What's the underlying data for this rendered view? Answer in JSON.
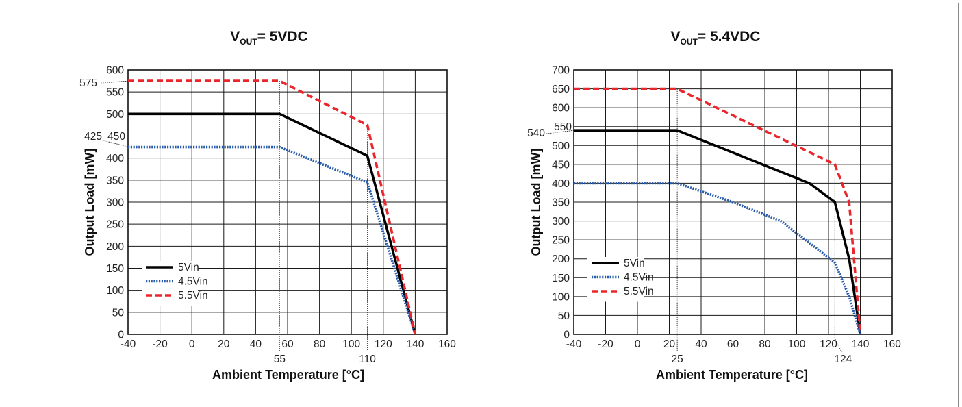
{
  "chart_data": [
    {
      "type": "line",
      "title_main": "V",
      "title_sub": "OUT",
      "title_rest": "= 5VDC",
      "xlabel": "Ambient Temperature [°C]",
      "ylabel": "Output Load [mW]",
      "xlim": [
        -40,
        160
      ],
      "ylim": [
        0,
        600
      ],
      "xticks": [
        "-40",
        "-20",
        "0",
        "20",
        "40",
        "60",
        "80",
        "100",
        "120",
        "140",
        "160"
      ],
      "yticks": [
        "0",
        "50",
        "100",
        "150",
        "200",
        "250",
        "300",
        "350",
        "400",
        "450",
        "500",
        "550",
        "600"
      ],
      "grid": true,
      "legend_position": "bottom-left",
      "series": [
        {
          "name": "5Vin",
          "color": "#000000",
          "style": "solid",
          "x": [
            -40,
            55,
            110,
            140
          ],
          "y": [
            500,
            500,
            405,
            0
          ]
        },
        {
          "name": "4.5Vin",
          "color": "#2a5caa",
          "style": "dotted",
          "x": [
            -40,
            55,
            110,
            140
          ],
          "y": [
            425,
            425,
            345,
            0
          ]
        },
        {
          "name": "5.5Vin",
          "color": "#e8262c",
          "style": "dashed",
          "x": [
            -40,
            55,
            110,
            140
          ],
          "y": [
            575,
            575,
            475,
            0
          ]
        }
      ],
      "annotations": {
        "y_markers": [
          {
            "label": "575",
            "value": 575
          },
          {
            "label": "425",
            "value": 425
          }
        ],
        "x_markers": [
          {
            "label": "55",
            "value": 55
          },
          {
            "label": "110",
            "value": 110
          }
        ]
      }
    },
    {
      "type": "line",
      "title_main": "V",
      "title_sub": "OUT",
      "title_rest": "= 5.4VDC",
      "xlabel": "Ambient Temperature [°C]",
      "ylabel": "Output Load [mW]",
      "xlim": [
        -40,
        160
      ],
      "ylim": [
        0,
        700
      ],
      "xticks": [
        "-40",
        "-20",
        "0",
        "20",
        "40",
        "60",
        "80",
        "100",
        "120",
        "140",
        "160"
      ],
      "yticks": [
        "0",
        "50",
        "100",
        "150",
        "200",
        "250",
        "300",
        "350",
        "400",
        "450",
        "500",
        "550",
        "600",
        "650",
        "700"
      ],
      "grid": true,
      "legend_position": "bottom-left",
      "series": [
        {
          "name": "5Vin",
          "color": "#000000",
          "style": "solid",
          "x": [
            -40,
            25,
            108,
            124,
            133,
            140
          ],
          "y": [
            540,
            540,
            400,
            350,
            200,
            0
          ]
        },
        {
          "name": "4.5Vin",
          "color": "#2a5caa",
          "style": "dotted",
          "x": [
            -40,
            25,
            60,
            90,
            124,
            133,
            140
          ],
          "y": [
            400,
            400,
            350,
            300,
            190,
            100,
            0
          ]
        },
        {
          "name": "5.5Vin",
          "color": "#e8262c",
          "style": "dashed",
          "x": [
            -40,
            25,
            124,
            133,
            140
          ],
          "y": [
            650,
            650,
            450,
            350,
            0
          ]
        }
      ],
      "annotations": {
        "y_markers": [
          {
            "label": "540",
            "value": 540
          }
        ],
        "x_markers": [
          {
            "label": "25",
            "value": 25
          },
          {
            "label": "124",
            "value": 124
          }
        ]
      }
    }
  ]
}
